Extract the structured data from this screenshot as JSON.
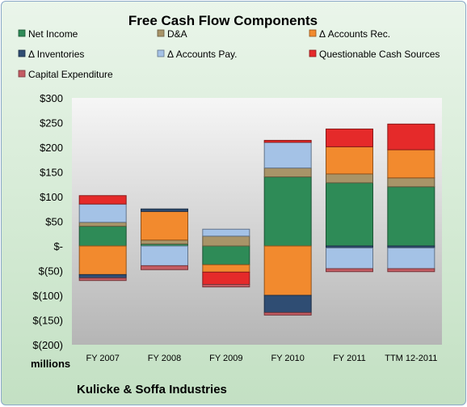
{
  "chart_data": {
    "type": "bar",
    "stacked": true,
    "title": "Free Cash Flow Components",
    "unit_label": "millions",
    "company": "Kulicke & Soffa Industries",
    "categories": [
      "FY 2007",
      "FY 2008",
      "FY 2009",
      "FY 2010",
      "FY 2011",
      "TTM 12-2011"
    ],
    "ylim": [
      -200,
      300
    ],
    "yticks": [
      300,
      250,
      200,
      150,
      100,
      50,
      0,
      -50,
      -100,
      -150,
      -200
    ],
    "ytick_labels": [
      "$300",
      "$250",
      "$200",
      "$150",
      "$100",
      "$50",
      "$-",
      "$(50)",
      "$(100)",
      "$(150)",
      "$(200)"
    ],
    "grid": false,
    "legend_position": "top",
    "series": [
      {
        "name": "Net Income",
        "color": "#2e8b57",
        "values": [
          40,
          4,
          -38,
          140,
          128,
          120
        ]
      },
      {
        "name": "D&A",
        "color": "#a89468",
        "values": [
          8,
          8,
          20,
          18,
          18,
          18
        ]
      },
      {
        "name": "Δ Accounts Rec.",
        "color": "#f28a2e",
        "values": [
          -58,
          58,
          -15,
          -100,
          55,
          57
        ]
      },
      {
        "name": "Δ Inventories",
        "color": "#2f4d73",
        "values": [
          -7,
          5,
          0,
          -35,
          -4,
          -4
        ]
      },
      {
        "name": "Δ Accounts Pay.",
        "color": "#a4c2e6",
        "values": [
          37,
          -40,
          14,
          52,
          -42,
          -42
        ]
      },
      {
        "name": "Questionable Cash Sources",
        "color": "#e52a2a",
        "values": [
          17,
          0,
          -25,
          4,
          36,
          52
        ]
      },
      {
        "name": "Capital Expenditure",
        "color": "#c45c63",
        "values": [
          -5,
          -8,
          -5,
          -5,
          -6,
          -6
        ]
      }
    ]
  }
}
